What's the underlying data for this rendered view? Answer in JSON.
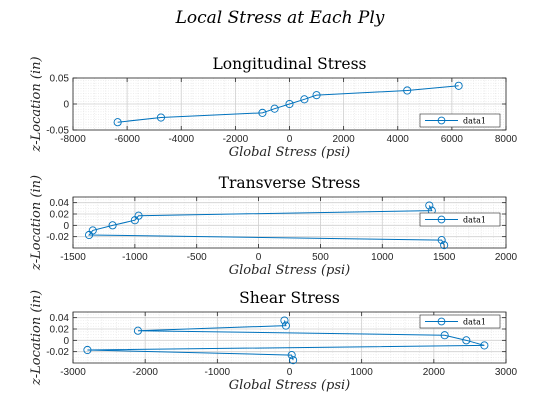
{
  "figure": {
    "title": "Local Stress at Each Ply"
  },
  "chart_data": [
    {
      "type": "line",
      "title": "Longitudinal Stress",
      "xlabel": "Global Stress (psi)",
      "ylabel": "z-Location (in)",
      "xlim": [
        -8000,
        8000
      ],
      "ylim": [
        -0.05,
        0.05
      ],
      "xticks": [
        -8000,
        -6000,
        -4000,
        -2000,
        0,
        2000,
        4000,
        6000,
        8000
      ],
      "yticks": [
        -0.05,
        0,
        0.05
      ],
      "grid": true,
      "minor_grid": true,
      "legend": "bottom-right",
      "series": [
        {
          "name": "data1",
          "color": "#0072BD",
          "marker": "circle",
          "x": [
            -6350,
            -4750,
            -1000,
            -550,
            0,
            550,
            1000,
            4350,
            6250
          ],
          "y": [
            -0.035,
            -0.026,
            -0.017,
            -0.009,
            0.0,
            0.009,
            0.017,
            0.026,
            0.035
          ]
        }
      ]
    },
    {
      "type": "line",
      "title": "Transverse Stress",
      "xlabel": "Global Stress (psi)",
      "ylabel": "z-Location (in)",
      "xlim": [
        -1500,
        2000
      ],
      "ylim": [
        -0.04,
        0.05
      ],
      "xticks": [
        -1500,
        -1000,
        -500,
        0,
        500,
        1000,
        1500,
        2000
      ],
      "yticks": [
        -0.02,
        0,
        0.02,
        0.04
      ],
      "grid": true,
      "minor_grid": true,
      "legend": "right",
      "series": [
        {
          "name": "data1",
          "color": "#0072BD",
          "marker": "circle",
          "x": [
            1500,
            1480,
            -1370,
            -1340,
            -1180,
            -1000,
            -970,
            1400,
            1380
          ],
          "y": [
            -0.035,
            -0.026,
            -0.017,
            -0.009,
            0.0,
            0.009,
            0.017,
            0.026,
            0.035
          ]
        }
      ]
    },
    {
      "type": "line",
      "title": "Shear Stress",
      "xlabel": "Global Stress (psi)",
      "ylabel": "z-Location (in)",
      "xlim": [
        -3000,
        3000
      ],
      "ylim": [
        -0.04,
        0.05
      ],
      "xticks": [
        -3000,
        -2000,
        -1000,
        0,
        1000,
        2000,
        3000
      ],
      "yticks": [
        -0.02,
        0,
        0.02,
        0.04
      ],
      "grid": true,
      "minor_grid": true,
      "legend": "top-right",
      "series": [
        {
          "name": "data1",
          "color": "#0072BD",
          "marker": "circle",
          "x": [
            50,
            30,
            -2800,
            2700,
            2450,
            2150,
            -2100,
            -50,
            -70
          ],
          "y": [
            -0.035,
            -0.026,
            -0.017,
            -0.009,
            0.0,
            0.009,
            0.017,
            0.026,
            0.035
          ]
        }
      ]
    }
  ]
}
